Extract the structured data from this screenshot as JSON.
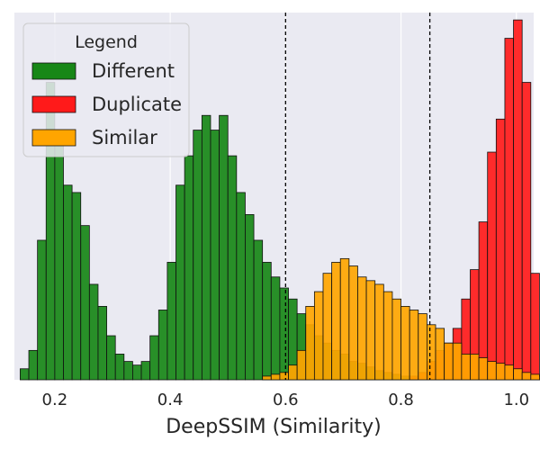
{
  "chart_data": {
    "type": "bar",
    "xlabel": "DeepSSIM (Similarity)",
    "ylabel": "",
    "title": "",
    "xlim": [
      0.13,
      1.03
    ],
    "xticks": [
      0.2,
      0.4,
      0.6,
      0.8,
      1.0
    ],
    "xtick_labels": [
      "0.2",
      "0.4",
      "0.6",
      "0.8",
      "1.0"
    ],
    "ylim": [
      0,
      1.0
    ],
    "grid": true,
    "bin_width": 0.015,
    "thresholds": [
      0.6,
      0.85
    ],
    "legend": {
      "title": "Legend",
      "placement": "top-left",
      "entries": [
        "Different",
        "Duplicate",
        "Similar"
      ]
    },
    "series": [
      {
        "name": "Different",
        "color": "#178717",
        "bin_start": 0.14,
        "values": [
          0.03,
          0.08,
          0.38,
          0.81,
          0.68,
          0.53,
          0.51,
          0.42,
          0.26,
          0.2,
          0.12,
          0.07,
          0.05,
          0.04,
          0.05,
          0.12,
          0.19,
          0.32,
          0.53,
          0.61,
          0.68,
          0.72,
          0.68,
          0.72,
          0.61,
          0.51,
          0.45,
          0.38,
          0.32,
          0.28,
          0.25,
          0.22,
          0.18,
          0.15,
          0.12,
          0.1,
          0.08,
          0.07,
          0.05,
          0.045,
          0.035,
          0.025,
          0.02,
          0.015,
          0.01,
          0.008
        ]
      },
      {
        "name": "Duplicate",
        "color": "#ff1a1a",
        "bin_start": 0.815,
        "values": [
          0.01,
          0.02,
          0.05,
          0.08,
          0.1,
          0.14,
          0.22,
          0.3,
          0.43,
          0.62,
          0.71,
          0.93,
          0.98,
          0.81,
          0.29
        ]
      },
      {
        "name": "Similar",
        "color": "#ffa500",
        "bin_start": 0.56,
        "values": [
          0.01,
          0.015,
          0.02,
          0.04,
          0.08,
          0.2,
          0.24,
          0.29,
          0.32,
          0.33,
          0.31,
          0.28,
          0.27,
          0.26,
          0.24,
          0.22,
          0.2,
          0.19,
          0.18,
          0.15,
          0.14,
          0.1,
          0.1,
          0.07,
          0.07,
          0.06,
          0.05,
          0.045,
          0.04,
          0.03,
          0.02,
          0.015,
          0.01,
          0.008
        ]
      }
    ]
  }
}
